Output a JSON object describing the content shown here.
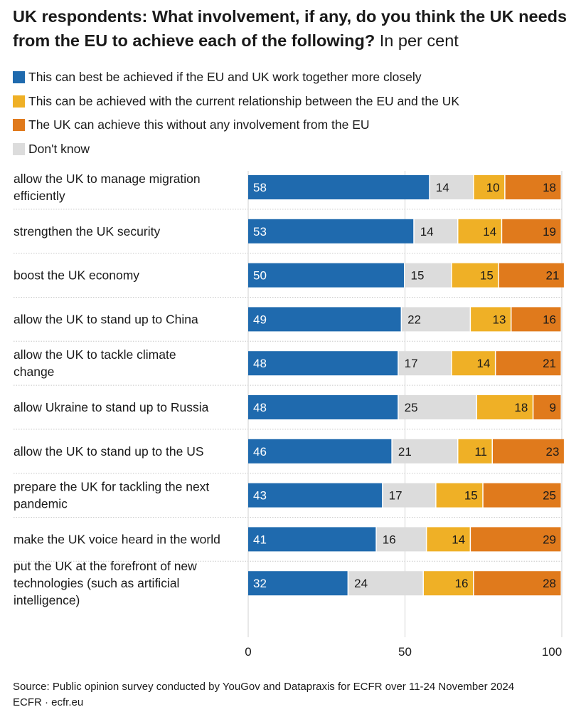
{
  "title": {
    "bold": "UK respondents: What involvement, if any, do you think the UK needs from the EU to achieve each of the following?",
    "unit": "In per cent"
  },
  "colors": {
    "together": "#1f6aae",
    "current": "#efb026",
    "without": "#e07a1c",
    "dont_know": "#dcdcdc",
    "grid": "#d2d2d2",
    "separator": "#c8c8c8",
    "text": "#1a1a1a"
  },
  "chart_data": {
    "type": "bar",
    "orientation": "horizontal",
    "stacked": true,
    "categories": [
      "allow the UK to manage migration efficiently",
      "strengthen the UK security",
      "boost the UK economy",
      "allow the UK to stand up to China",
      "allow the UK to tackle climate change",
      "allow Ukraine to stand up to Russia",
      "allow the UK to stand up to the US",
      "prepare the UK for tackling the next pandemic",
      "make the UK voice heard in the world",
      "put the UK at the forefront of new technologies (such as artificial intelligence)"
    ],
    "series": [
      {
        "name": "This can best be achieved if the EU and UK work together more closely",
        "key": "together",
        "values": [
          58,
          53,
          50,
          49,
          48,
          48,
          46,
          43,
          41,
          32
        ]
      },
      {
        "name": "Don't know",
        "key": "dont_know",
        "values": [
          14,
          14,
          15,
          22,
          17,
          25,
          21,
          17,
          16,
          24
        ]
      },
      {
        "name": "This can be achieved with the current relationship between the EU and the UK",
        "key": "current",
        "values": [
          10,
          14,
          15,
          13,
          14,
          18,
          11,
          15,
          14,
          16
        ]
      },
      {
        "name": "The UK can achieve this without any involvement from the EU",
        "key": "without",
        "values": [
          18,
          19,
          21,
          16,
          21,
          9,
          23,
          25,
          29,
          28
        ]
      }
    ],
    "legend_order": [
      "together",
      "current",
      "without",
      "dont_know"
    ],
    "xlim": [
      0,
      100
    ],
    "xticks": [
      0,
      50,
      100
    ],
    "grid": true
  },
  "footer": {
    "source": "Source: Public opinion survey conducted by YouGov and Datapraxis for ECFR over 11-24 November 2024",
    "credit": "ECFR · ecfr.eu"
  }
}
